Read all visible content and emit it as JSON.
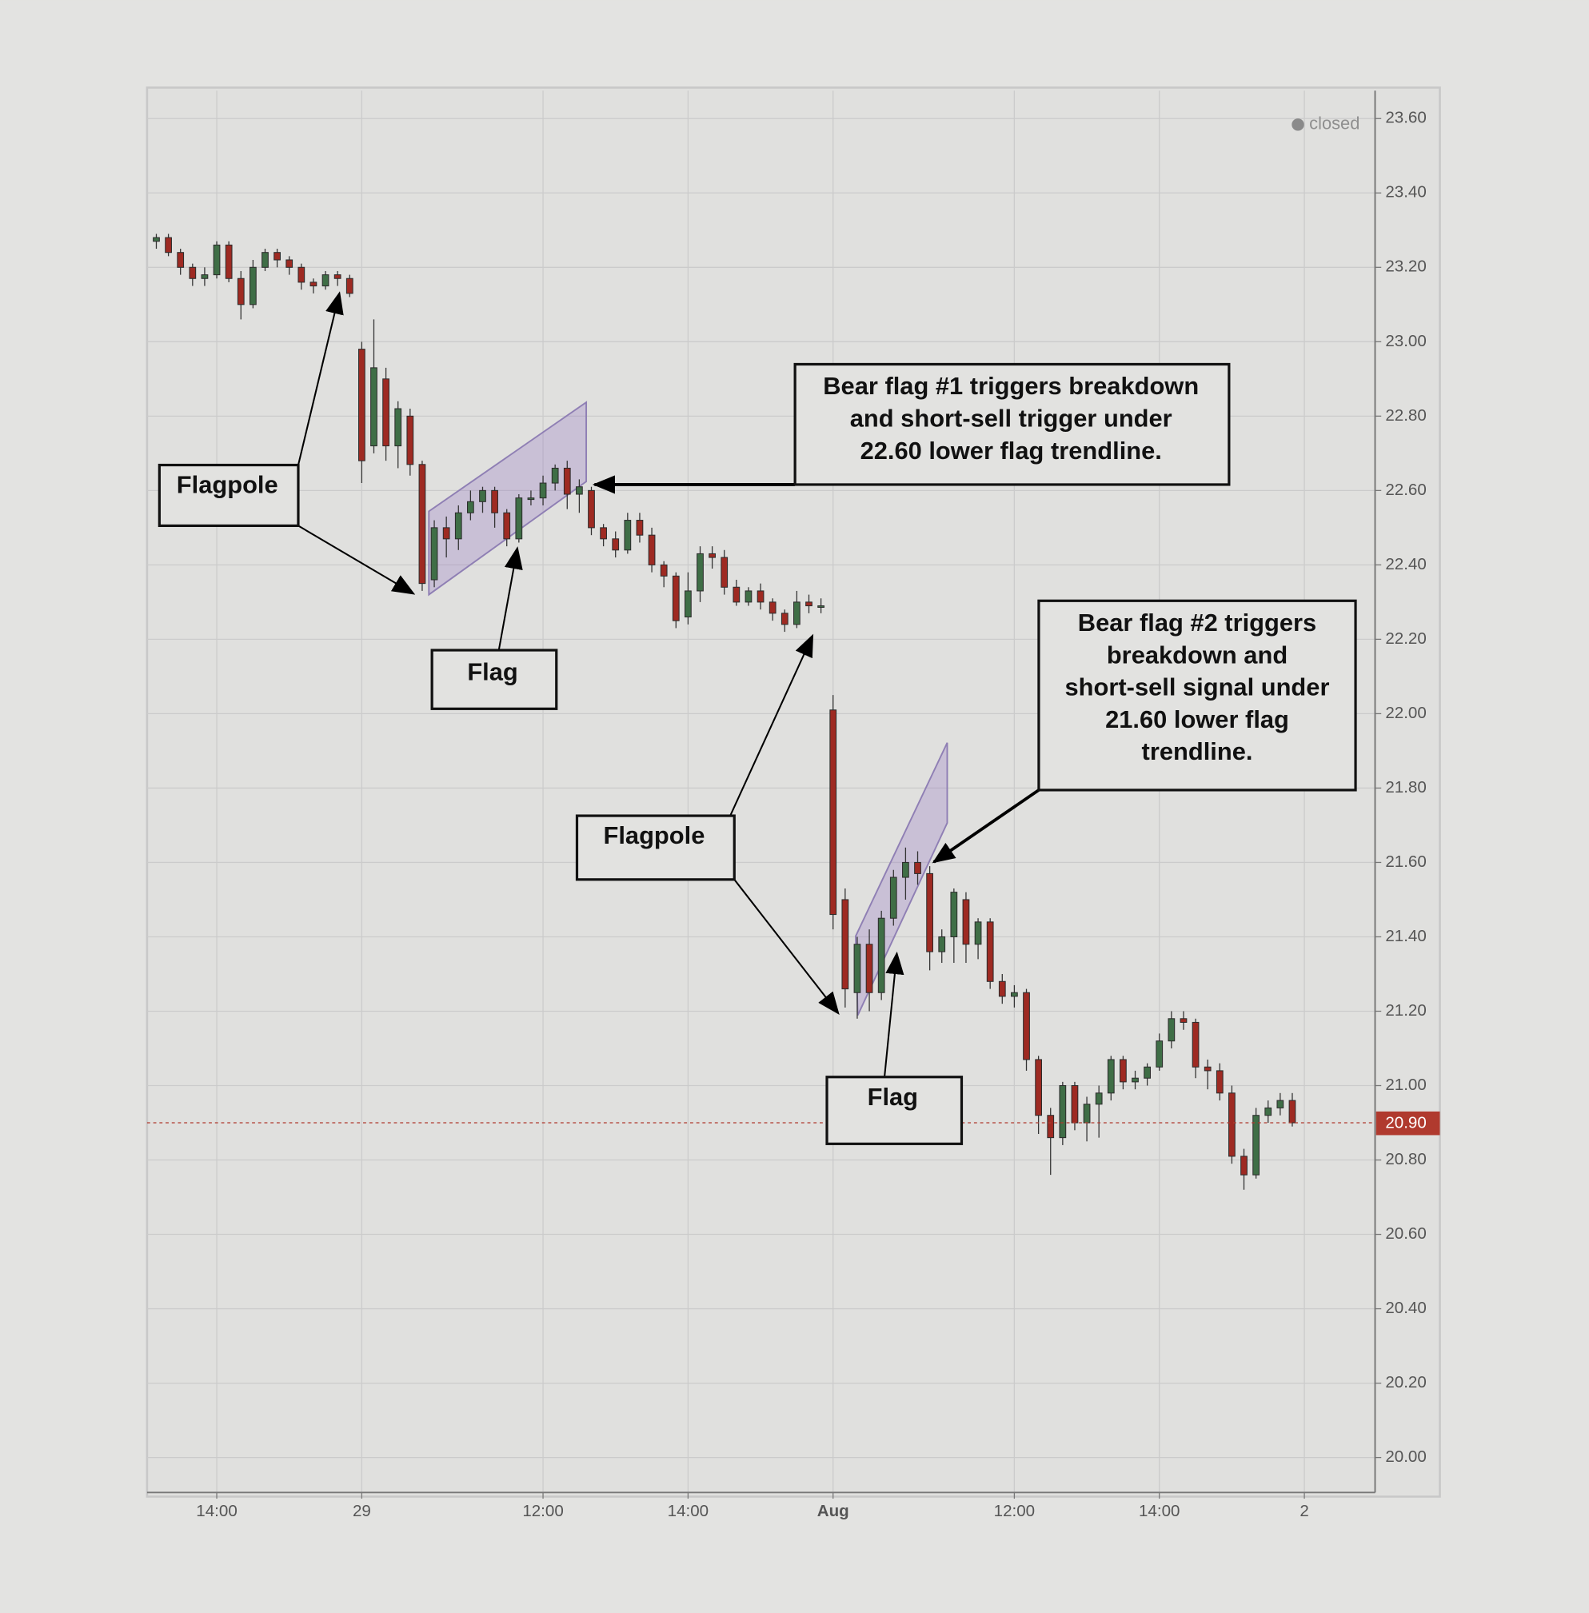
{
  "chart_data": {
    "type": "candlestick",
    "status": "closed",
    "categories": [
      null,
      null,
      null,
      null,
      null,
      "14:00",
      null,
      null,
      null,
      null,
      null,
      null,
      null,
      null,
      null,
      null,
      null,
      "29",
      null,
      null,
      null,
      null,
      null,
      null,
      null,
      null,
      null,
      null,
      null,
      null,
      null,
      null,
      "12:00",
      null,
      null,
      null,
      null,
      null,
      null,
      null,
      null,
      null,
      null,
      null,
      "14:00",
      null,
      null,
      null,
      null,
      null,
      null,
      null,
      null,
      null,
      null,
      null,
      "Aug",
      null,
      null,
      null,
      null,
      null,
      null,
      null,
      null,
      null,
      null,
      null,
      null,
      null,
      null,
      "12:00",
      null,
      null,
      null,
      null,
      null,
      null,
      null,
      null,
      null,
      null,
      null,
      "14:00",
      null,
      null,
      null,
      null,
      null,
      null,
      null,
      null,
      null,
      null,
      null,
      "2"
    ],
    "open": [
      23.27,
      23.28,
      23.24,
      23.2,
      23.17,
      23.18,
      23.26,
      23.17,
      23.1,
      23.2,
      23.24,
      23.22,
      23.2,
      23.16,
      23.15,
      23.18,
      23.17,
      22.98,
      22.72,
      22.9,
      22.72,
      22.8,
      22.67,
      22.36,
      22.5,
      22.47,
      22.54,
      22.57,
      22.6,
      22.54,
      22.47,
      22.58,
      22.58,
      22.62,
      22.66,
      22.59,
      22.6,
      22.5,
      22.47,
      22.44,
      22.52,
      22.48,
      22.4,
      22.37,
      22.26,
      22.33,
      22.43,
      22.42,
      22.34,
      22.3,
      22.33,
      22.3,
      22.27,
      22.24,
      22.3,
      22.29,
      22.01,
      21.5,
      21.25,
      21.38,
      21.25,
      21.45,
      21.56,
      21.6,
      21.57,
      21.36,
      21.4,
      21.5,
      21.38,
      21.44,
      21.28,
      21.24,
      21.25,
      21.07,
      20.92,
      20.86,
      21.0,
      20.9,
      20.95,
      20.98,
      21.07,
      21.01,
      21.02,
      21.05,
      21.12,
      21.18,
      21.17,
      21.05,
      21.04,
      20.98,
      20.81,
      20.76,
      20.92,
      20.94,
      20.96,
      null
    ],
    "high": [
      23.29,
      23.29,
      23.25,
      23.21,
      23.2,
      23.27,
      23.27,
      23.19,
      23.22,
      23.25,
      23.25,
      23.23,
      23.21,
      23.17,
      23.19,
      23.19,
      23.18,
      23.0,
      23.06,
      22.93,
      22.84,
      22.82,
      22.68,
      22.52,
      22.53,
      22.56,
      22.6,
      22.61,
      22.61,
      22.55,
      22.59,
      22.6,
      22.64,
      22.67,
      22.68,
      22.63,
      22.61,
      22.51,
      22.49,
      22.54,
      22.54,
      22.5,
      22.41,
      22.38,
      22.38,
      22.45,
      22.45,
      22.44,
      22.36,
      22.34,
      22.35,
      22.31,
      22.28,
      22.33,
      22.32,
      22.31,
      22.05,
      21.53,
      21.4,
      21.42,
      21.47,
      21.58,
      21.64,
      21.63,
      21.59,
      21.42,
      21.53,
      21.52,
      21.45,
      21.45,
      21.3,
      21.27,
      21.26,
      21.08,
      20.94,
      21.01,
      21.01,
      20.97,
      21.0,
      21.08,
      21.08,
      21.04,
      21.06,
      21.14,
      21.2,
      21.2,
      21.18,
      21.07,
      21.06,
      21.0,
      20.83,
      20.94,
      20.96,
      20.98,
      20.98,
      null
    ],
    "low": [
      23.25,
      23.23,
      23.18,
      23.15,
      23.15,
      23.17,
      23.16,
      23.06,
      23.09,
      23.19,
      23.2,
      23.18,
      23.14,
      23.13,
      23.14,
      23.15,
      23.12,
      22.62,
      22.7,
      22.68,
      22.66,
      22.64,
      22.33,
      22.34,
      22.42,
      22.44,
      22.52,
      22.54,
      22.5,
      22.45,
      22.46,
      22.56,
      22.56,
      22.6,
      22.55,
      22.54,
      22.48,
      22.45,
      22.42,
      22.43,
      22.46,
      22.38,
      22.34,
      22.23,
      22.24,
      22.3,
      22.39,
      22.32,
      22.29,
      22.29,
      22.28,
      22.25,
      22.22,
      22.23,
      22.27,
      22.27,
      21.42,
      21.21,
      21.18,
      21.2,
      21.23,
      21.43,
      21.5,
      21.54,
      21.31,
      21.33,
      21.33,
      21.33,
      21.34,
      21.26,
      21.22,
      21.21,
      21.04,
      20.87,
      20.76,
      20.84,
      20.88,
      20.85,
      20.86,
      20.96,
      20.99,
      20.99,
      21.0,
      21.04,
      21.1,
      21.15,
      21.02,
      20.99,
      20.96,
      20.79,
      20.72,
      20.75,
      20.9,
      20.92,
      20.89,
      null
    ],
    "close": [
      23.28,
      23.24,
      23.2,
      23.17,
      23.18,
      23.26,
      23.17,
      23.1,
      23.2,
      23.24,
      23.22,
      23.2,
      23.16,
      23.15,
      23.18,
      23.17,
      23.13,
      22.68,
      22.93,
      22.72,
      22.82,
      22.67,
      22.35,
      22.5,
      22.47,
      22.54,
      22.57,
      22.6,
      22.54,
      22.47,
      22.58,
      22.58,
      22.62,
      22.66,
      22.59,
      22.61,
      22.5,
      22.47,
      22.44,
      22.52,
      22.48,
      22.4,
      22.37,
      22.25,
      22.33,
      22.43,
      22.42,
      22.34,
      22.3,
      22.33,
      22.3,
      22.27,
      22.24,
      22.3,
      22.29,
      22.29,
      21.46,
      21.26,
      21.38,
      21.25,
      21.45,
      21.56,
      21.6,
      21.57,
      21.36,
      21.4,
      21.52,
      21.38,
      21.44,
      21.28,
      21.24,
      21.25,
      21.07,
      20.92,
      20.86,
      21.0,
      20.9,
      20.95,
      20.98,
      21.07,
      21.01,
      21.02,
      21.05,
      21.12,
      21.18,
      21.17,
      21.05,
      21.04,
      20.98,
      20.81,
      20.76,
      20.92,
      20.94,
      20.96,
      20.9,
      null
    ],
    "up_color": "#3f6e46",
    "down_color": "#9e2a22",
    "ylim": [
      19.906,
      23.675
    ],
    "yticks": [
      {
        "value": 20,
        "label": "20.00"
      },
      {
        "value": 20.2,
        "label": "20.20"
      },
      {
        "value": 20.4,
        "label": "20.40"
      },
      {
        "value": 20.6,
        "label": "20.60"
      },
      {
        "value": 20.8,
        "label": "20.80"
      },
      {
        "value": 21,
        "label": "21.00"
      },
      {
        "value": 21.2,
        "label": "21.20"
      },
      {
        "value": 21.4,
        "label": "21.40"
      },
      {
        "value": 21.6,
        "label": "21.60"
      },
      {
        "value": 21.8,
        "label": "21.80"
      },
      {
        "value": 22,
        "label": "22.00"
      },
      {
        "value": 22.2,
        "label": "22.20"
      },
      {
        "value": 22.4,
        "label": "22.40"
      },
      {
        "value": 22.6,
        "label": "22.60"
      },
      {
        "value": 22.8,
        "label": "22.80"
      },
      {
        "value": 23,
        "label": "23.00"
      },
      {
        "value": 23.2,
        "label": "23.20"
      },
      {
        "value": 23.4,
        "label": "23.40"
      },
      {
        "value": 23.6,
        "label": "23.60"
      }
    ],
    "grid": true,
    "last_price": {
      "value": 20.9,
      "label": "20.90",
      "color": "#b03a2e"
    },
    "annotations": [
      {
        "lines": [
          "Flagpole"
        ]
      },
      {
        "lines": [
          "Flag"
        ]
      },
      {
        "lines": [
          "Bear flag #1 triggers breakdown",
          "and short-sell trigger under",
          "22.60 lower flag trendline."
        ]
      },
      {
        "lines": [
          "Flagpole"
        ]
      },
      {
        "lines": [
          "Flag"
        ]
      },
      {
        "lines": [
          "Bear flag #2 triggers",
          "breakdown and",
          "short-sell signal under",
          "21.60 lower flag",
          "trendline."
        ]
      }
    ]
  }
}
